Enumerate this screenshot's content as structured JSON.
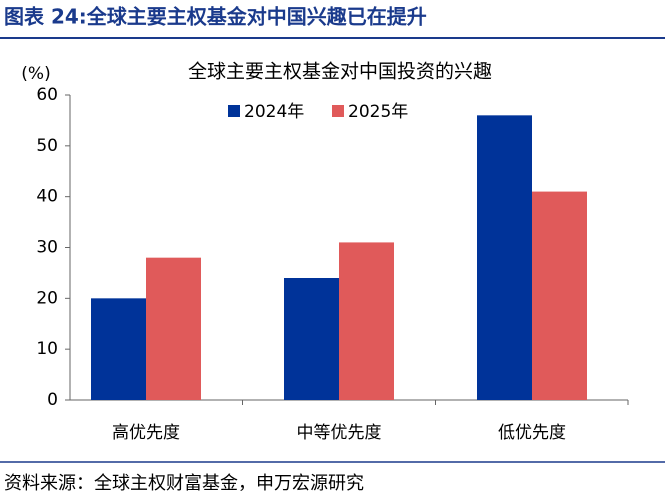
{
  "header": "图表 24:全球主要主权基金对中国兴趣已在提升",
  "source": "资料来源：全球主权财富基金，申万宏源研究",
  "chart_data": {
    "type": "bar",
    "title": "全球主要主权基金对中国投资的兴趣",
    "y_label": "(%)",
    "categories": [
      "高优先度",
      "中等优先度",
      "低优先度"
    ],
    "series": [
      {
        "name": "2024年",
        "color": "#003399",
        "values": [
          20,
          24,
          56
        ]
      },
      {
        "name": "2025年",
        "color": "#e05a5a",
        "values": [
          28,
          31,
          41
        ]
      }
    ],
    "ylim": [
      0,
      60
    ],
    "yticks": [
      0,
      10,
      20,
      30,
      40,
      50,
      60
    ]
  }
}
